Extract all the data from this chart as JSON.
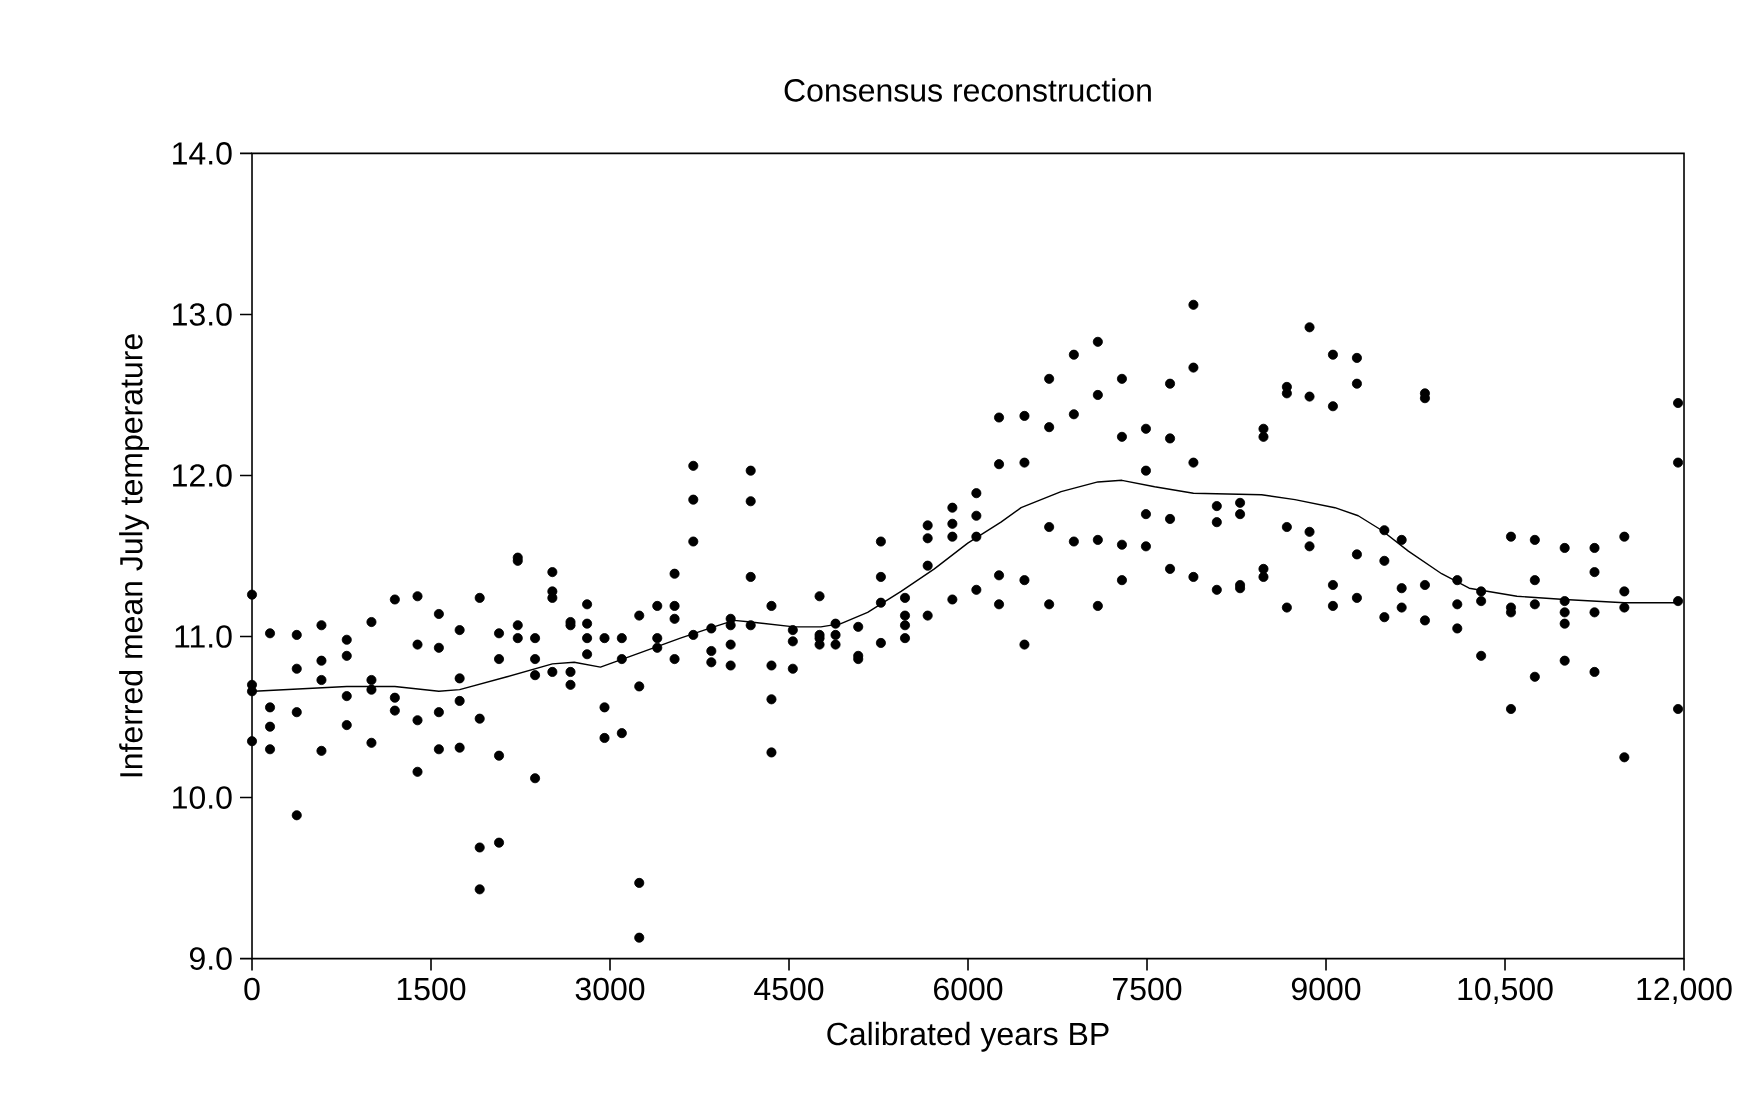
{
  "chart_data": {
    "type": "scatter",
    "title": "Consensus reconstruction",
    "xlabel": "Calibrated years BP",
    "ylabel": "Inferred mean July temperature",
    "xlim": [
      0,
      12000
    ],
    "ylim": [
      9.0,
      14.0
    ],
    "xticks": [
      0,
      1500,
      3000,
      4500,
      6000,
      7500,
      9000,
      {
        "value": 10500,
        "label": "10,500"
      },
      {
        "value": 12000,
        "label": "12,000"
      }
    ],
    "yticks": [
      {
        "value": 9,
        "label": "9.0"
      },
      {
        "value": 10,
        "label": "10.0"
      },
      {
        "value": 11,
        "label": "11.0"
      },
      {
        "value": 12,
        "label": "12.0"
      },
      {
        "value": 13,
        "label": "13.0"
      },
      {
        "value": 14,
        "label": "14.0"
      }
    ],
    "marker": "circle",
    "grid": false,
    "series": [
      {
        "color": "#000000",
        "x": [
          0,
          0,
          0,
          0,
          151,
          151,
          151,
          151,
          375,
          375,
          375,
          375,
          582,
          582,
          582,
          582,
          794,
          794,
          794,
          794,
          1001,
          1001,
          1001,
          1001,
          1197,
          1197,
          1197,
          1387,
          1387,
          1387,
          1387,
          1566,
          1566,
          1566,
          1566,
          1740,
          1740,
          1740,
          1740,
          1908,
          1908,
          1908,
          1908,
          2070,
          2070,
          2070,
          2070,
          2227,
          2227,
          2227,
          2227,
          2372,
          2372,
          2372,
          2372,
          2517,
          2517,
          2517,
          2517,
          2669,
          2669,
          2669,
          2669,
          2808,
          2808,
          2808,
          2808,
          2954,
          2954,
          2954,
          3099,
          3099,
          3099,
          3245,
          3245,
          3245,
          3245,
          3396,
          3396,
          3396,
          3541,
          3541,
          3541,
          3541,
          3698,
          3698,
          3698,
          3698,
          3849,
          3849,
          3849,
          4011,
          4011,
          4011,
          4011,
          4179,
          4179,
          4179,
          4179,
          4353,
          4353,
          4353,
          4353,
          4532,
          4532,
          4532,
          4756,
          4756,
          4756,
          4756,
          4890,
          4890,
          4890,
          5080,
          5080,
          5080,
          5270,
          5270,
          5270,
          5270,
          5472,
          5472,
          5472,
          5472,
          5662,
          5662,
          5662,
          5662,
          5869,
          5869,
          5869,
          5869,
          6070,
          6070,
          6070,
          6070,
          6260,
          6260,
          6260,
          6260,
          6473,
          6473,
          6473,
          6473,
          6680,
          6680,
          6680,
          6680,
          6887,
          6887,
          6887,
          7088,
          7088,
          7088,
          7088,
          7290,
          7290,
          7290,
          7290,
          7491,
          7491,
          7491,
          7491,
          7693,
          7693,
          7693,
          7693,
          7889,
          7889,
          7889,
          7889,
          8085,
          8085,
          8085,
          8280,
          8280,
          8280,
          8280,
          8476,
          8476,
          8476,
          8476,
          8672,
          8672,
          8672,
          8672,
          8862,
          8862,
          8862,
          8862,
          9058,
          9058,
          9058,
          9058,
          9259,
          9259,
          9259,
          9259,
          9489,
          9489,
          9489,
          9634,
          9634,
          9634,
          9829,
          9829,
          9829,
          9829,
          10100,
          10100,
          10100,
          10300,
          10300,
          10300,
          10550,
          10550,
          10550,
          10550,
          10750,
          10750,
          10750,
          10750,
          11000,
          11000,
          11000,
          11000,
          11000,
          11250,
          11250,
          11250,
          11250,
          11500,
          11500,
          11500,
          11500,
          11950,
          11950,
          11950,
          11950
        ],
        "values": [
          11.26,
          10.7,
          10.66,
          10.35,
          11.02,
          10.56,
          10.44,
          10.3,
          11.01,
          10.8,
          10.53,
          9.89,
          11.07,
          10.85,
          10.73,
          10.29,
          10.98,
          10.88,
          10.63,
          10.45,
          11.09,
          10.73,
          10.67,
          10.34,
          11.23,
          10.62,
          10.54,
          11.25,
          10.95,
          10.48,
          10.16,
          11.14,
          10.93,
          10.53,
          10.3,
          11.04,
          10.74,
          10.6,
          10.31,
          11.24,
          10.49,
          9.69,
          9.43,
          11.02,
          10.86,
          10.26,
          9.72,
          11.49,
          11.47,
          11.07,
          10.99,
          10.99,
          10.86,
          10.76,
          10.12,
          11.4,
          11.28,
          11.24,
          10.78,
          11.09,
          11.07,
          10.78,
          10.7,
          11.2,
          11.08,
          10.99,
          10.89,
          10.99,
          10.56,
          10.37,
          10.99,
          10.86,
          10.4,
          11.13,
          10.69,
          9.47,
          9.13,
          11.19,
          10.99,
          10.93,
          11.39,
          11.19,
          11.11,
          10.86,
          12.06,
          11.85,
          11.59,
          11.01,
          11.05,
          10.91,
          10.84,
          11.11,
          11.07,
          10.95,
          10.82,
          12.03,
          11.84,
          11.37,
          11.07,
          11.19,
          10.82,
          10.61,
          10.28,
          11.04,
          10.97,
          10.8,
          11.25,
          11.01,
          10.99,
          10.95,
          11.08,
          11.01,
          10.95,
          11.06,
          10.88,
          10.86,
          11.59,
          11.37,
          11.21,
          10.96,
          11.24,
          11.13,
          11.07,
          10.99,
          11.69,
          11.61,
          11.44,
          11.13,
          11.8,
          11.7,
          11.62,
          11.23,
          11.89,
          11.75,
          11.62,
          11.29,
          12.36,
          12.07,
          11.38,
          11.2,
          12.37,
          12.08,
          11.35,
          10.95,
          12.6,
          12.3,
          11.68,
          11.2,
          12.75,
          12.38,
          11.59,
          12.83,
          12.5,
          11.6,
          11.19,
          12.6,
          12.24,
          11.57,
          11.35,
          12.29,
          12.03,
          11.76,
          11.56,
          12.57,
          12.23,
          11.73,
          11.42,
          13.06,
          12.67,
          12.08,
          11.37,
          11.81,
          11.71,
          11.29,
          11.83,
          11.76,
          11.32,
          11.3,
          12.29,
          12.24,
          11.42,
          11.37,
          12.55,
          12.51,
          11.68,
          11.18,
          12.92,
          12.49,
          11.65,
          11.56,
          12.75,
          12.43,
          11.32,
          11.19,
          12.73,
          12.57,
          11.51,
          11.24,
          11.66,
          11.47,
          11.12,
          11.6,
          11.3,
          11.18,
          12.51,
          12.48,
          11.32,
          11.1,
          11.35,
          11.2,
          11.05,
          11.28,
          11.22,
          10.88,
          11.62,
          11.18,
          11.15,
          10.55,
          11.6,
          11.35,
          11.2,
          10.75,
          11.55,
          11.22,
          11.15,
          11.08,
          10.85,
          11.55,
          11.4,
          11.15,
          10.78,
          11.62,
          11.28,
          11.18,
          10.25,
          12.45,
          12.08,
          11.22,
          10.55
        ]
      },
      {
        "type": "line",
        "color": "#000000",
        "marker": "none",
        "x": [
          0,
          794,
          1197,
          1566,
          1740,
          2137,
          2517,
          2700,
          2920,
          3256,
          3590,
          3870,
          4040,
          4179,
          4543,
          4767,
          4935,
          5159,
          5439,
          5718,
          5998,
          6276,
          6445,
          6780,
          7088,
          7290,
          7564,
          7889,
          8460,
          8740,
          9075,
          9270,
          9466,
          9690,
          9969,
          10200,
          10600,
          11000,
          11500,
          11950
        ],
        "values": [
          10.66,
          10.69,
          10.69,
          10.66,
          10.67,
          10.75,
          10.83,
          10.84,
          10.81,
          10.9,
          10.99,
          11.06,
          11.1,
          11.09,
          11.06,
          11.06,
          11.08,
          11.15,
          11.28,
          11.42,
          11.58,
          11.71,
          11.8,
          11.9,
          11.96,
          11.97,
          11.93,
          11.89,
          11.88,
          11.85,
          11.8,
          11.75,
          11.66,
          11.53,
          11.39,
          11.3,
          11.25,
          11.23,
          11.21,
          11.21
        ]
      }
    ]
  }
}
